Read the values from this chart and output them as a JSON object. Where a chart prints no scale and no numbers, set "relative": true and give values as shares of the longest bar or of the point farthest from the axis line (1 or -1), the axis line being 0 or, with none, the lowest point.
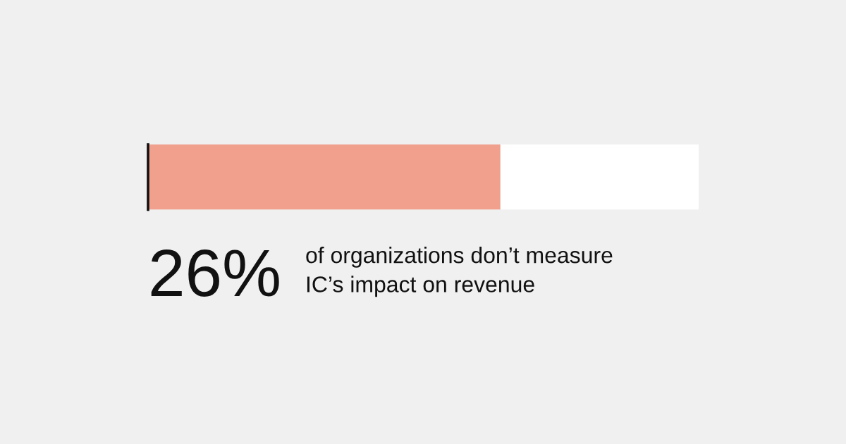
{
  "chart_data": {
    "type": "bar",
    "orientation": "horizontal",
    "stacked": true,
    "relative": true,
    "categories": [
      null
    ],
    "series": [
      {
        "color": "#f0a08c",
        "values": [
          0.64
        ]
      },
      {
        "color": "#ffffff",
        "values": [
          0.36
        ]
      }
    ],
    "annotations": [
      "26%",
      "of organizations don’t measure\nIC’s impact on revenue"
    ]
  }
}
